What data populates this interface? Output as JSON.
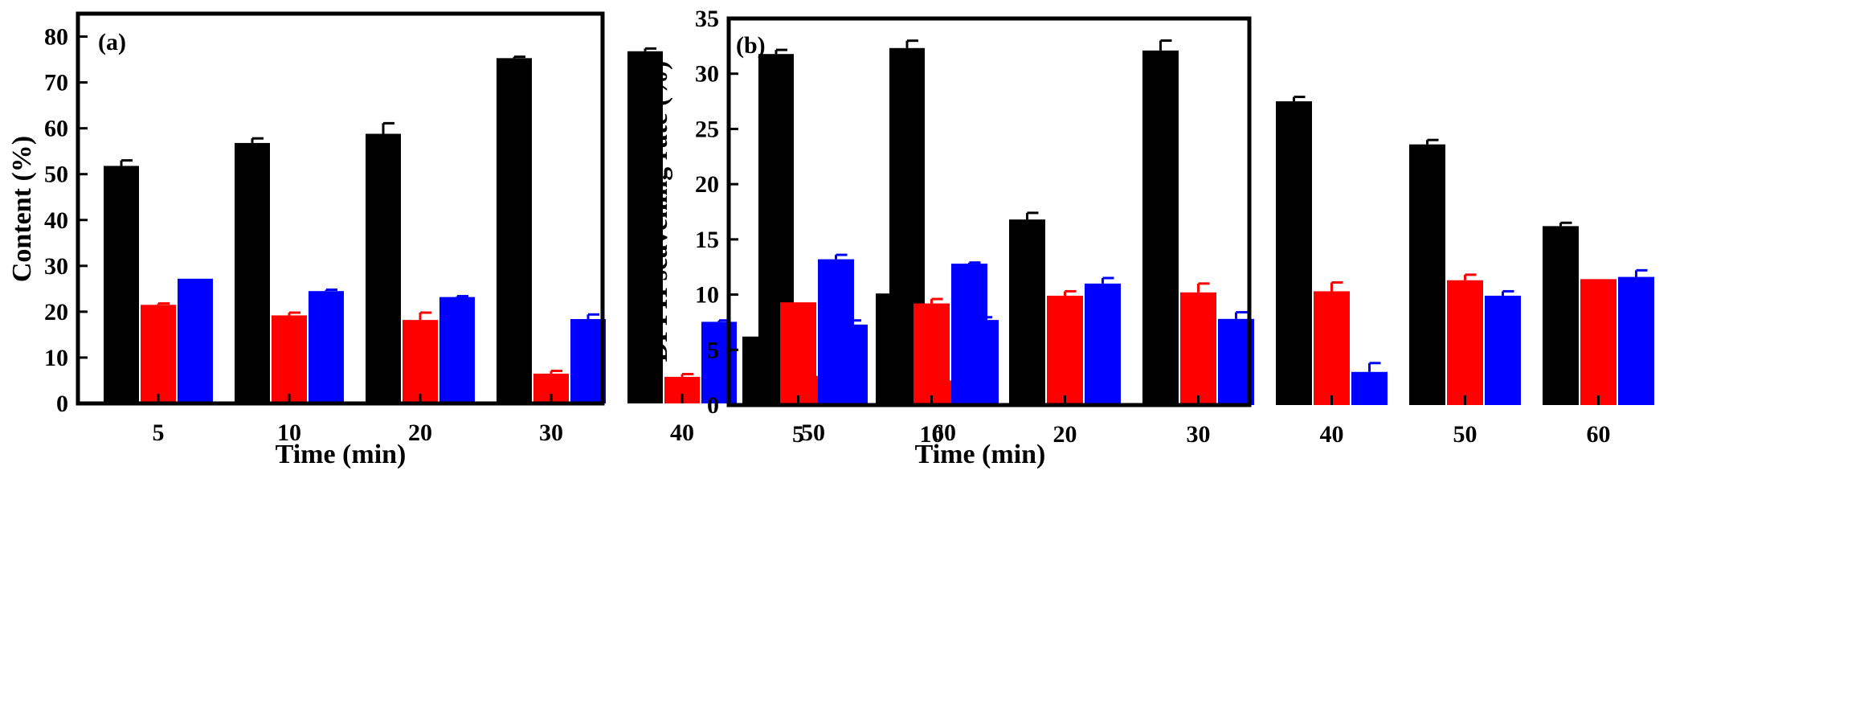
{
  "colors": {
    "series_1": "#000000",
    "series_2": "#ff0000",
    "series_3": "#0000ff"
  },
  "chart_data": [
    {
      "type": "bar",
      "panel_label": "(a)",
      "xlabel": "Time (min)",
      "ylabel": "Content (%)",
      "categories": [
        "5",
        "10",
        "20",
        "30",
        "40",
        "50",
        "60"
      ],
      "ylim": [
        0,
        85
      ],
      "yticks": [
        "0",
        "10",
        "20",
        "30",
        "40",
        "50",
        "60",
        "70",
        "80"
      ],
      "series": [
        {
          "name": "series_1",
          "color": "#000000",
          "values": [
            51.8,
            56.8,
            58.8,
            75.3,
            76.8,
            76.2,
            77.5
          ],
          "errors": [
            1.2,
            1.0,
            2.3,
            0.3,
            0.6,
            0.9,
            1.6
          ]
        },
        {
          "name": "series_2",
          "color": "#ff0000",
          "values": [
            21.5,
            19.2,
            18.2,
            6.5,
            5.8,
            6.0,
            5.0
          ],
          "errors": [
            0.3,
            0.6,
            1.6,
            0.6,
            0.6,
            0,
            0
          ]
        },
        {
          "name": "series_3",
          "color": "#0000ff",
          "values": [
            27.2,
            24.5,
            23.2,
            18.4,
            17.8,
            17.2,
            18.2
          ],
          "errors": [
            0,
            0.3,
            0.2,
            1.0,
            0.3,
            0.9,
            0.6
          ]
        }
      ]
    },
    {
      "type": "bar",
      "panel_label": "(b)",
      "xlabel": "Time (min)",
      "ylabel": "DPPH scavening rate (%)",
      "categories": [
        "5",
        "10",
        "20",
        "30",
        "40",
        "50",
        "60"
      ],
      "ylim": [
        0,
        35
      ],
      "yticks": [
        "0",
        "5",
        "10",
        "15",
        "20",
        "25",
        "30",
        "35"
      ],
      "series": [
        {
          "name": "series_1",
          "color": "#000000",
          "values": [
            6.2,
            10.1,
            16.8,
            32.1,
            27.5,
            23.6,
            16.2
          ],
          "errors": [
            0.3,
            0.2,
            0.6,
            0.9,
            0.4,
            0.4,
            0.3
          ]
        },
        {
          "name": "series_2",
          "color": "#ff0000",
          "values": [
            9.3,
            9.2,
            9.9,
            10.2,
            10.3,
            11.3,
            11.4
          ],
          "errors": [
            0,
            0.4,
            0.4,
            0.8,
            0.8,
            0.5,
            0
          ]
        },
        {
          "name": "series_3",
          "color": "#0000ff",
          "values": [
            13.2,
            12.8,
            11.0,
            7.8,
            3.0,
            9.9,
            11.6
          ],
          "errors": [
            0.4,
            0.1,
            0.5,
            0.6,
            0.8,
            0.4,
            0.6
          ]
        }
      ]
    }
  ]
}
